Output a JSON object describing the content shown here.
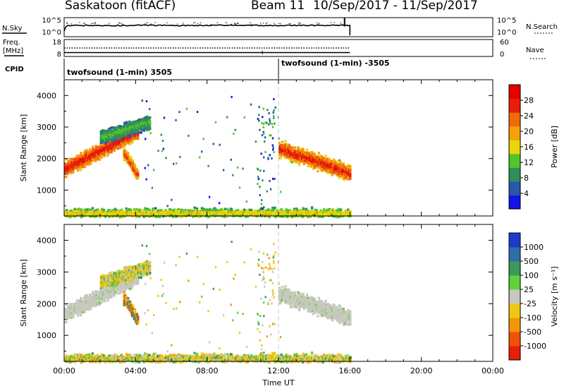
{
  "header": {
    "station": "Saskatoon (fitACF)",
    "beam": "Beam 11",
    "date_range": "10/Sep/2017 - 11/Sep/2017"
  },
  "top_panels": {
    "noise": {
      "left_label": "N.Sky",
      "right_label": "N.Search",
      "left_ticks": [
        "10^5",
        "10^0"
      ],
      "right_ticks": [
        "10^5",
        "10^0"
      ]
    },
    "freq": {
      "left_label_1": "Freq.",
      "left_label_2": "[MHz]",
      "left_ticks": [
        "18",
        "8"
      ],
      "right_label": "Nave",
      "right_ticks": [
        "60",
        "0"
      ]
    },
    "cpid": {
      "label": "CPID",
      "programs": [
        {
          "name": "twofsound (1-min) 3505"
        },
        {
          "name": "twofsound (1-min) -3505"
        }
      ]
    }
  },
  "axes": {
    "y_label": "Slant Range [km]",
    "y_ticks": [
      "1000",
      "2000",
      "3000",
      "4000"
    ],
    "x_label": "Time UT",
    "x_ticks": [
      "00:00",
      "04:00",
      "08:00",
      "12:00",
      "16:00",
      "20:00",
      "00:00"
    ]
  },
  "colorbars": {
    "power": {
      "title": "Power [dB]",
      "labels": [
        "4",
        "8",
        "12",
        "16",
        "20",
        "24",
        "28"
      ],
      "colors": [
        "#1414e6",
        "#2a57ad",
        "#2f8f5a",
        "#54c42a",
        "#e8d60a",
        "#f5a10a",
        "#f06a0a",
        "#e61e0a",
        "#e60000"
      ]
    },
    "velocity": {
      "title": "Velocity [m s⁻¹]",
      "labels": [
        "1000",
        "500",
        "100",
        "25",
        "-25",
        "-100",
        "-500",
        "-1000"
      ],
      "colors": [
        "#1e3cc8",
        "#2f6ea5",
        "#3c9a5a",
        "#5fd23c",
        "#c8c8be",
        "#f0c814",
        "#f5960a",
        "#f0500a",
        "#e61e0a"
      ]
    }
  },
  "chart_data": {
    "type": "heatmap",
    "x_unit": "hours UT",
    "xlim": [
      0,
      24
    ],
    "y_unit": "km",
    "ylim": [
      180,
      4500
    ],
    "scatter_regions": [
      {
        "name": "morning echo band",
        "t_start": 0.0,
        "t_end": 4.1,
        "range_start_km": 1700,
        "range_end_km": 2900,
        "width_km": 380,
        "power_db": [
          14,
          30
        ],
        "velocity_class": "low"
      },
      {
        "name": "morning fringe",
        "t_start": 2.0,
        "t_end": 4.8,
        "range_start_km": 2700,
        "range_end_km": 3200,
        "width_km": 350,
        "power_db": [
          4,
          14
        ],
        "velocity_class": "mixed"
      },
      {
        "name": "morning tail",
        "t_start": 3.3,
        "t_end": 4.1,
        "range_start_km": 2200,
        "range_end_km": 1500,
        "width_km": 300,
        "power_db": [
          10,
          28
        ],
        "velocity_class": "negative"
      },
      {
        "name": "afternoon echo band",
        "t_start": 12.0,
        "t_end": 16.0,
        "range_start_km": 2350,
        "range_end_km": 1550,
        "width_km": 420,
        "power_db": [
          10,
          30
        ],
        "velocity_class": "low"
      },
      {
        "name": "near-range ground scatter",
        "t_start": 0.0,
        "t_end": 16.0,
        "range_start_km": 300,
        "range_end_km": 300,
        "width_km": 250,
        "power_db": [
          4,
          20
        ],
        "velocity_class": "mixed"
      }
    ],
    "operating_window_hours": [
      0,
      16
    ],
    "mode_change_hour": 12
  }
}
